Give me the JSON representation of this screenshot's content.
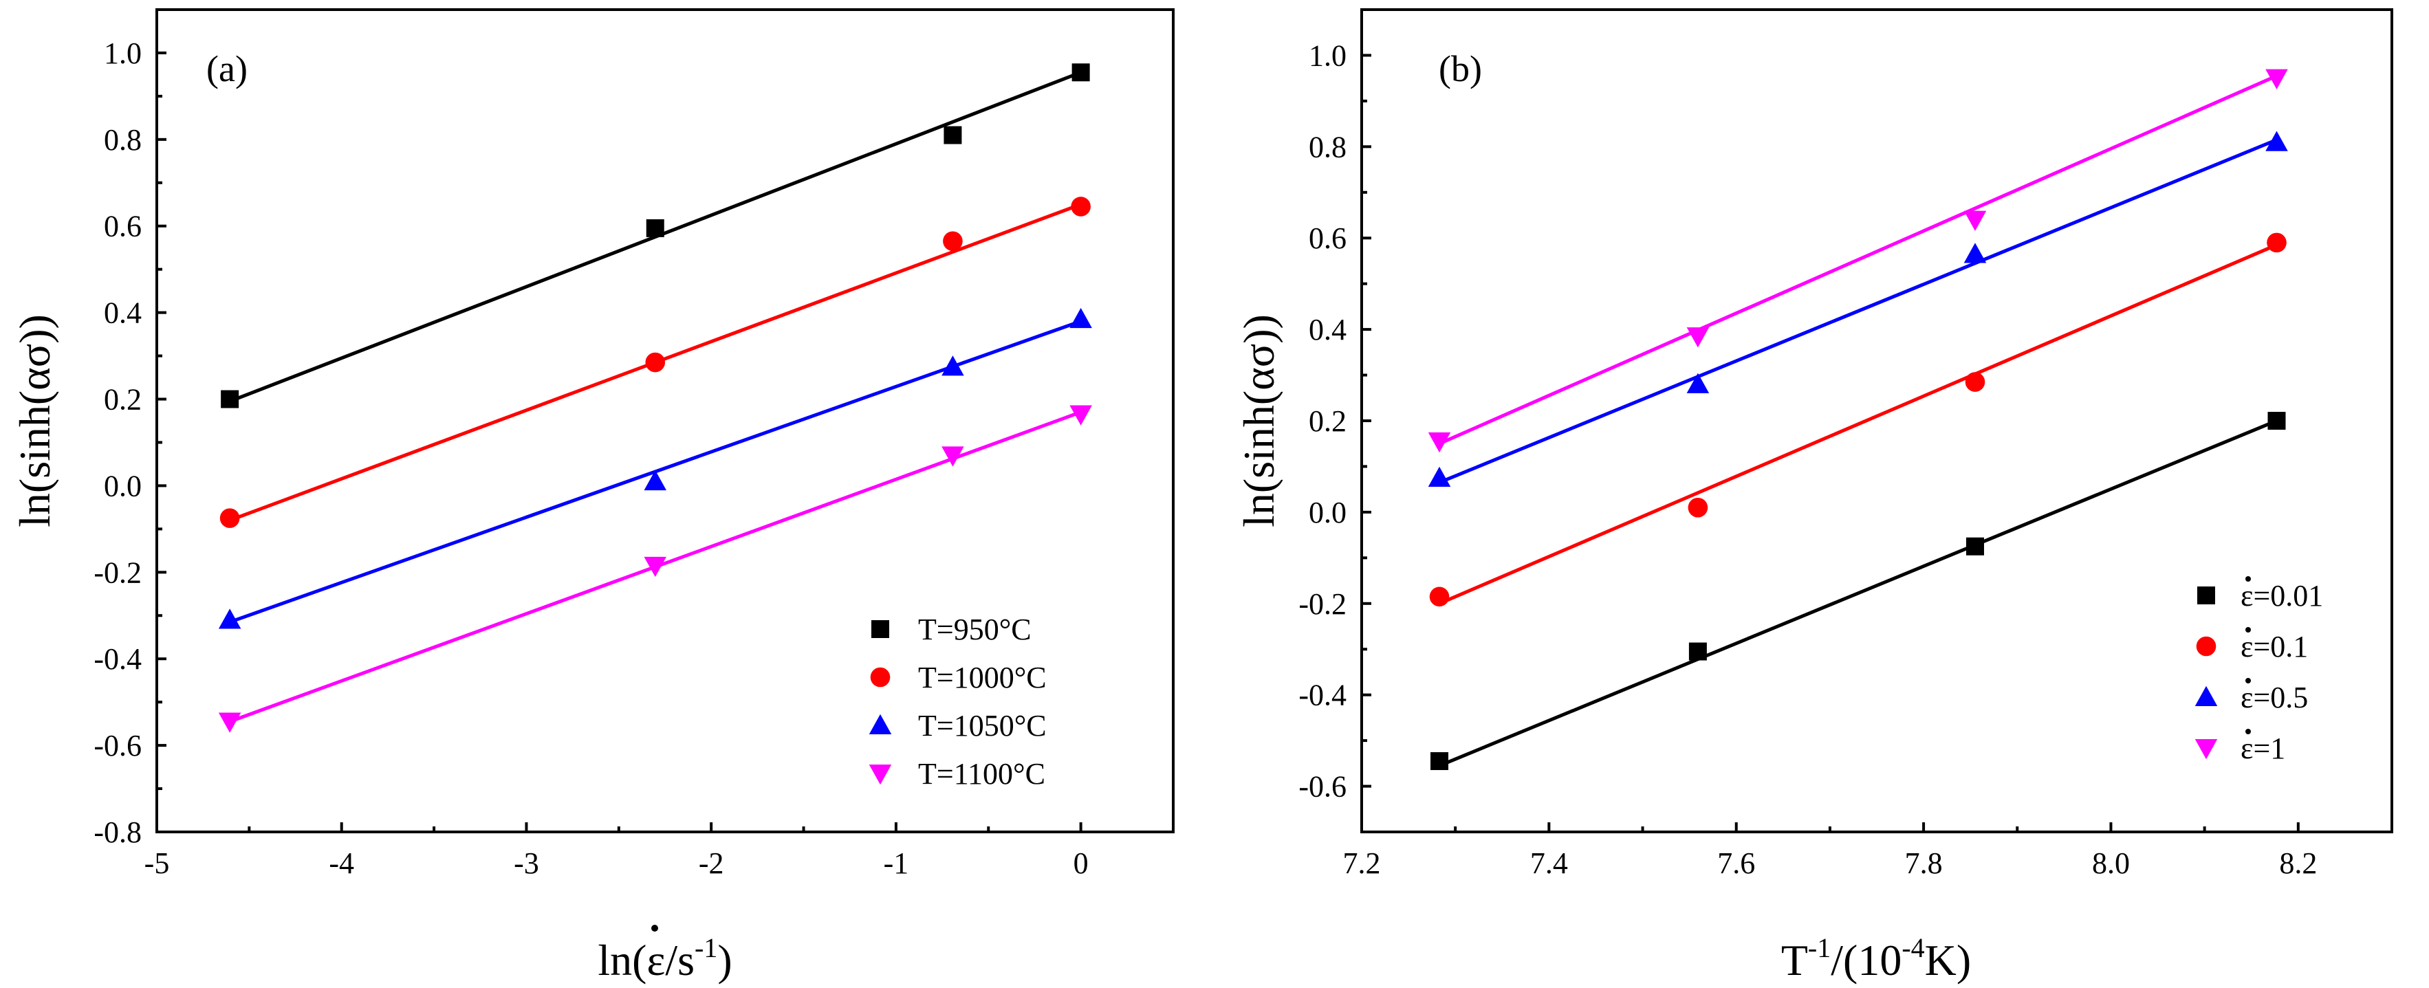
{
  "chart_data": [
    {
      "type": "scatter",
      "panel_label": "(a)",
      "xlabel": "ln(ε̇/s⁻¹)",
      "xlabel_parts": {
        "pre": "ln(",
        "sym": "ε",
        "mid": "/s",
        "sup": "-1",
        "post": ")"
      },
      "ylabel": "ln(sinh(ασ))",
      "xlim": [
        -5,
        0.5
      ],
      "ylim": [
        -0.8,
        1.1
      ],
      "xticks": [
        -5,
        -4,
        -3,
        -2,
        -1,
        0
      ],
      "xtick_labels": [
        "-5",
        "-4",
        "-3",
        "-2",
        "-1",
        "0"
      ],
      "yticks": [
        -0.8,
        -0.6,
        -0.4,
        -0.2,
        0.0,
        0.2,
        0.4,
        0.6,
        0.8,
        1.0
      ],
      "ytick_labels": [
        "-0.8",
        "-0.6",
        "-0.4",
        "-0.2",
        "0.0",
        "0.2",
        "0.4",
        "0.6",
        "0.8",
        "1.0"
      ],
      "legend_position": "bottom-right",
      "series": [
        {
          "name": "T=950°C",
          "marker": "square",
          "color": "#000000",
          "x": [
            -4.605,
            -2.303,
            -0.693,
            0.0
          ],
          "y": [
            0.2,
            0.595,
            0.81,
            0.955
          ],
          "fit": {
            "x": [
              -4.605,
              0.0
            ],
            "y": [
              0.195,
              0.955
            ]
          }
        },
        {
          "name": "T=1000°C",
          "marker": "circle",
          "color": "#ff0000",
          "x": [
            -4.605,
            -2.303,
            -0.693,
            0.0
          ],
          "y": [
            -0.075,
            0.285,
            0.565,
            0.645
          ],
          "fit": {
            "x": [
              -4.605,
              0.0
            ],
            "y": [
              -0.08,
              0.65
            ]
          }
        },
        {
          "name": "T=1050°C",
          "marker": "triangle-up",
          "color": "#0000ff",
          "x": [
            -4.605,
            -2.303,
            -0.693,
            0.0
          ],
          "y": [
            -0.31,
            0.01,
            0.275,
            0.385
          ],
          "fit": {
            "x": [
              -4.605,
              0.0
            ],
            "y": [
              -0.315,
              0.38
            ]
          }
        },
        {
          "name": "T=1100°C",
          "marker": "triangle-down",
          "color": "#ff00ff",
          "x": [
            -4.605,
            -2.303,
            -0.693,
            0.0
          ],
          "y": [
            -0.545,
            -0.185,
            0.07,
            0.165
          ],
          "fit": {
            "x": [
              -4.605,
              0.0
            ],
            "y": [
              -0.545,
              0.17
            ]
          }
        }
      ]
    },
    {
      "type": "scatter",
      "panel_label": "(b)",
      "xlabel": "T⁻¹/(10⁻⁴K)",
      "xlabel_parts": {
        "pre": "T",
        "sup1": "-1",
        "mid": "/(10",
        "sup2": "-4",
        "post": "K)"
      },
      "ylabel": "ln(sinh(ασ))",
      "xlim": [
        7.2,
        8.3
      ],
      "ylim": [
        -0.7,
        1.1
      ],
      "xticks": [
        7.2,
        7.4,
        7.6,
        7.8,
        8.0,
        8.2
      ],
      "xtick_labels": [
        "7.2",
        "7.4",
        "7.6",
        "7.8",
        "8.0",
        "8.2"
      ],
      "yticks": [
        -0.6,
        -0.4,
        -0.2,
        0.0,
        0.2,
        0.4,
        0.6,
        0.8,
        1.0
      ],
      "ytick_labels": [
        "-0.6",
        "-0.4",
        "-0.2",
        "0.0",
        "0.2",
        "0.4",
        "0.6",
        "0.8",
        "1.0"
      ],
      "legend_position": "bottom-right",
      "series": [
        {
          "name": "ε=0.01",
          "legend_value": "=0.01",
          "marker": "square",
          "color": "#000000",
          "x": [
            7.283,
            7.855,
            7.559,
            8.177
          ],
          "y": [
            -0.545,
            -0.075,
            -0.305,
            0.2
          ],
          "fit": {
            "x": [
              7.283,
              8.177
            ],
            "y": [
              -0.555,
              0.2
            ]
          }
        },
        {
          "name": "ε=0.1",
          "legend_value": "=0.1",
          "marker": "circle",
          "color": "#ff0000",
          "x": [
            7.283,
            7.559,
            7.855,
            8.177
          ],
          "y": [
            -0.185,
            0.01,
            0.285,
            0.59
          ],
          "fit": {
            "x": [
              7.283,
              8.177
            ],
            "y": [
              -0.2,
              0.585
            ]
          }
        },
        {
          "name": "ε=0.5",
          "legend_value": "=0.5",
          "marker": "triangle-up",
          "color": "#0000ff",
          "x": [
            7.283,
            7.559,
            7.855,
            8.177
          ],
          "y": [
            0.075,
            0.28,
            0.565,
            0.81
          ],
          "fit": {
            "x": [
              7.283,
              8.177
            ],
            "y": [
              0.065,
              0.815
            ]
          }
        },
        {
          "name": "ε=1",
          "legend_value": "=1",
          "marker": "triangle-down",
          "color": "#ff00ff",
          "x": [
            7.283,
            7.559,
            7.855,
            8.177
          ],
          "y": [
            0.155,
            0.385,
            0.64,
            0.95
          ],
          "fit": {
            "x": [
              7.283,
              8.177
            ],
            "y": [
              0.15,
              0.955
            ]
          }
        }
      ]
    }
  ]
}
